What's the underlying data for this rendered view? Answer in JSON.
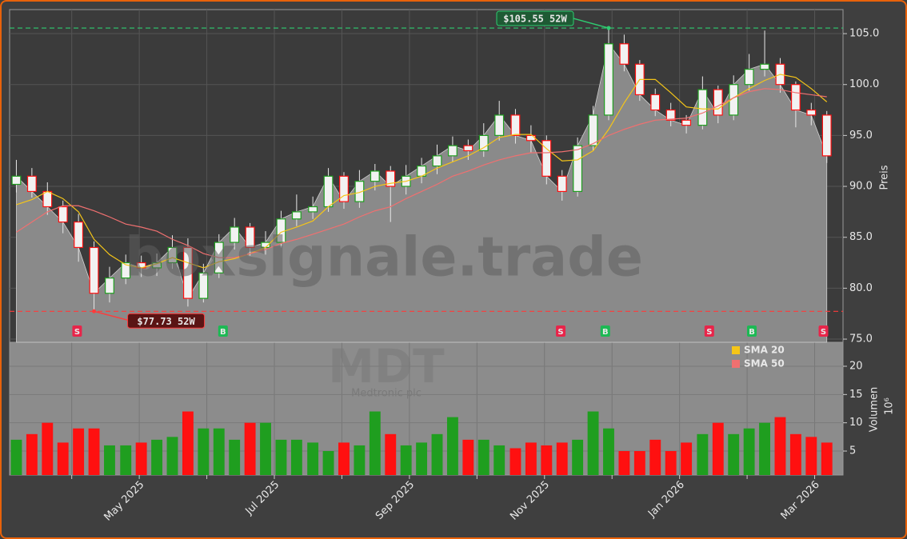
{
  "chart_data": {
    "type": "candlestick",
    "ticker": "MDT",
    "company": "Medtronic plc",
    "watermark": "boxsignale.trade",
    "ylabel": "Preis",
    "x": [
      2.18,
      2.41,
      2.64,
      2.87,
      3.1,
      3.33,
      3.56,
      3.8,
      4.03,
      4.26,
      4.49,
      4.72,
      4.95,
      5.18,
      5.41,
      5.64,
      5.87,
      6.1,
      6.33,
      6.57,
      6.8,
      7.03,
      7.26,
      7.49,
      7.72,
      7.95,
      8.18,
      8.41,
      8.64,
      8.87,
      9.1,
      9.33,
      9.57,
      9.8,
      10.03,
      10.26,
      10.49,
      10.72,
      10.95,
      11.18,
      11.41,
      11.64,
      11.87,
      12.1,
      12.34,
      12.57,
      12.8,
      13.03,
      13.26,
      13.49,
      13.72,
      13.95,
      14.18
    ],
    "open": [
      90.2,
      91.0,
      89.5,
      88.0,
      86.5,
      84.0,
      79.5,
      81.0,
      82.5,
      82.0,
      82.5,
      84.0,
      79.0,
      81.5,
      84.5,
      86.0,
      84.0,
      84.5,
      86.8,
      87.5,
      88.0,
      91.0,
      88.5,
      90.5,
      91.5,
      90.0,
      91.0,
      92.0,
      93.0,
      94.0,
      93.5,
      95.0,
      97.0,
      95.0,
      94.5,
      91.0,
      89.5,
      94.0,
      97.0,
      104.0,
      102.0,
      99.0,
      97.5,
      96.5,
      96.0,
      99.5,
      97.0,
      100.0,
      101.5,
      102.0,
      100.0,
      97.5,
      97.0
    ],
    "high": [
      92.6,
      91.8,
      90.4,
      88.6,
      87.3,
      84.6,
      82.1,
      83.3,
      83.2,
      83.4,
      85.2,
      84.9,
      82.4,
      85.3,
      86.9,
      86.4,
      85.6,
      87.6,
      89.2,
      89.0,
      91.8,
      91.4,
      91.6,
      92.2,
      92.0,
      92.1,
      92.8,
      94.1,
      94.9,
      94.6,
      96.2,
      98.4,
      97.6,
      96.0,
      95.0,
      91.6,
      94.8,
      97.9,
      105.55,
      104.9,
      102.4,
      99.6,
      98.2,
      97.0,
      100.8,
      99.9,
      100.9,
      103.0,
      105.3,
      102.6,
      100.3,
      98.2,
      97.4
    ],
    "low": [
      89.4,
      88.9,
      87.2,
      85.4,
      82.6,
      77.73,
      78.6,
      80.4,
      81.1,
      81.2,
      81.9,
      78.2,
      78.6,
      81.0,
      83.8,
      83.2,
      83.3,
      84.0,
      86.1,
      86.8,
      87.5,
      87.8,
      87.9,
      89.6,
      86.5,
      89.2,
      90.3,
      91.2,
      92.4,
      92.6,
      92.9,
      94.5,
      94.2,
      93.3,
      90.2,
      88.6,
      89.0,
      93.5,
      96.5,
      101.3,
      98.4,
      96.9,
      95.9,
      95.2,
      95.6,
      96.2,
      96.5,
      99.4,
      100.8,
      99.2,
      95.8,
      96.0,
      92.3
    ],
    "close": [
      91.0,
      89.5,
      88.0,
      86.5,
      84.0,
      79.5,
      81.0,
      82.5,
      82.0,
      82.5,
      84.0,
      79.0,
      81.5,
      84.5,
      86.0,
      84.0,
      84.5,
      86.8,
      87.5,
      88.0,
      91.0,
      88.5,
      90.5,
      91.5,
      90.0,
      91.0,
      92.0,
      93.0,
      94.0,
      93.5,
      95.0,
      97.0,
      95.0,
      94.5,
      91.0,
      89.5,
      94.0,
      97.0,
      104.0,
      102.0,
      99.0,
      97.5,
      96.5,
      96.0,
      99.5,
      97.0,
      100.0,
      101.5,
      102.0,
      100.0,
      97.5,
      97.0,
      93.0
    ],
    "up_color": "#1f9e1f",
    "down_color": "#ff1010",
    "series": [
      {
        "name": "SMA 20",
        "color": "#f5c518",
        "values": [
          88.2,
          88.7,
          89.5,
          88.8,
          87.5,
          84.8,
          83.3,
          82.3,
          82.0,
          82.4,
          83.0,
          82.5,
          82.0,
          82.6,
          82.9,
          83.4,
          84.0,
          85.5,
          86.0,
          86.6,
          88.0,
          89.1,
          89.4,
          90.0,
          90.3,
          90.5,
          91.0,
          91.8,
          92.4,
          93.0,
          93.8,
          94.8,
          95.1,
          95.1,
          93.7,
          92.5,
          92.6,
          93.5,
          95.6,
          98.2,
          100.5,
          100.5,
          99.2,
          97.8,
          97.6,
          97.6,
          98.7,
          99.6,
          100.4,
          101.0,
          100.7,
          99.6,
          98.3
        ]
      },
      {
        "name": "SMA 50",
        "color": "#f07070",
        "values": [
          85.5,
          86.5,
          87.5,
          88.1,
          88.1,
          87.6,
          87.0,
          86.3,
          86.0,
          85.6,
          84.8,
          84.2,
          83.4,
          83.0,
          83.0,
          83.4,
          83.8,
          84.4,
          84.8,
          85.3,
          85.8,
          86.3,
          87.0,
          87.6,
          88.0,
          88.8,
          89.5,
          90.2,
          91.0,
          91.5,
          92.1,
          92.6,
          93.0,
          93.3,
          93.3,
          93.4,
          93.6,
          94.2,
          95.0,
          95.6,
          96.1,
          96.5,
          96.6,
          96.7,
          97.2,
          97.9,
          98.7,
          99.3,
          99.6,
          99.5,
          99.2,
          99.0,
          98.8
        ]
      }
    ],
    "volume": {
      "label": "Volumen",
      "unit": "10⁶",
      "values": [
        7,
        8,
        10,
        6.5,
        9,
        9,
        6,
        6,
        6.5,
        7,
        7.5,
        12,
        9,
        9,
        7,
        10,
        10,
        7,
        7,
        6.5,
        5,
        6.5,
        6,
        12,
        8,
        6,
        6.5,
        8,
        11,
        7,
        7,
        6,
        5.5,
        6.5,
        6,
        6.5,
        7,
        12,
        9,
        5,
        5,
        7,
        5,
        6.5,
        8,
        10,
        8,
        9,
        10,
        11,
        8,
        7.5,
        6.5
      ],
      "ylim": [
        0.76,
        24.24
      ],
      "yticks": [
        5,
        10,
        15,
        20
      ]
    },
    "xlim": [
      2.08,
      14.42
    ],
    "xticks": [
      {
        "value": 4,
        "label": "May 2025"
      },
      {
        "value": 6,
        "label": "Jul 2025"
      },
      {
        "value": 8,
        "label": "Sep 2025"
      },
      {
        "value": 10,
        "label": "Nov 2025"
      },
      {
        "value": 12,
        "label": "Jan 2026"
      },
      {
        "value": 14,
        "label": "Mar 2026"
      }
    ],
    "xminorticks": [
      3,
      5,
      7,
      9,
      11,
      13
    ],
    "ylim": [
      74.69,
      107.36
    ],
    "yticks": [
      {
        "value": 75,
        "label": "75.0"
      },
      {
        "value": 80,
        "label": "80.0"
      },
      {
        "value": 85,
        "label": "85.0"
      },
      {
        "value": 90,
        "label": "90.0"
      },
      {
        "value": 95,
        "label": "95.0"
      },
      {
        "value": 100,
        "label": "100.0"
      },
      {
        "value": 105,
        "label": "105.0"
      }
    ],
    "grid": true,
    "annotations": [
      {
        "label": "$105.55 52W",
        "value": 105.55,
        "x": 10.95,
        "color": "#2ecc71"
      },
      {
        "label": "$77.73 52W",
        "value": 77.73,
        "x": 3.33,
        "color": "#ff3b3b"
      }
    ],
    "signals": [
      {
        "x": 3.08,
        "label": "S",
        "color": "#e8254a"
      },
      {
        "x": 5.24,
        "label": "B",
        "color": "#1db954"
      },
      {
        "x": 10.24,
        "label": "S",
        "color": "#e8254a"
      },
      {
        "x": 10.9,
        "label": "B",
        "color": "#1db954"
      },
      {
        "x": 12.44,
        "label": "S",
        "color": "#e8254a"
      },
      {
        "x": 13.07,
        "label": "B",
        "color": "#1db954"
      },
      {
        "x": 14.13,
        "label": "S",
        "color": "#e8254a"
      }
    ]
  }
}
